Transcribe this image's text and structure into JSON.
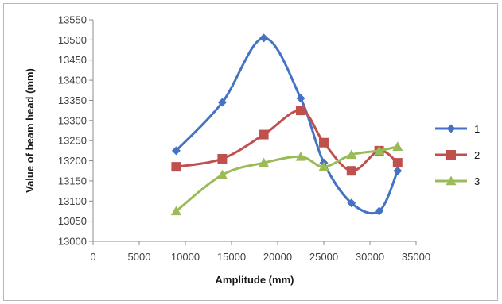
{
  "chart_data": {
    "type": "line",
    "title": "",
    "xlabel": "Amplitude (mm)",
    "ylabel": "Value of beam head (mm)",
    "xlim": [
      0,
      35000
    ],
    "ylim": [
      13000,
      13550
    ],
    "x_ticks": [
      0,
      5000,
      10000,
      15000,
      20000,
      25000,
      30000,
      35000
    ],
    "y_ticks": [
      13000,
      13050,
      13100,
      13150,
      13200,
      13250,
      13300,
      13350,
      13400,
      13450,
      13500,
      13550
    ],
    "grid": false,
    "smooth": true,
    "legend_position": "right",
    "x": [
      9000,
      14000,
      18500,
      22500,
      25000,
      28000,
      31000,
      33000
    ],
    "series": [
      {
        "name": "1",
        "marker": "diamond",
        "color": "#4472C4",
        "values": [
          13225,
          13345,
          13505,
          13355,
          13195,
          13095,
          13075,
          13175
        ]
      },
      {
        "name": "2",
        "marker": "square",
        "color": "#C0504D",
        "values": [
          13185,
          13205,
          13265,
          13325,
          13245,
          13175,
          13225,
          13195
        ]
      },
      {
        "name": "3",
        "marker": "triangle",
        "color": "#9BBB59",
        "values": [
          13075,
          13165,
          13195,
          13210,
          13185,
          13215,
          13225,
          13235
        ]
      }
    ]
  }
}
